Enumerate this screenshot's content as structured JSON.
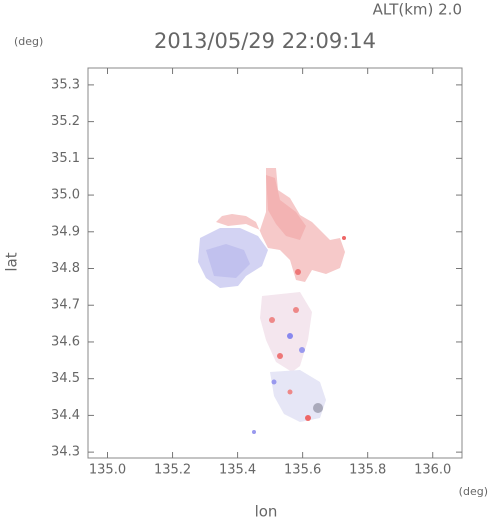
{
  "chart_data": {
    "type": "map",
    "title": "2013/05/29 22:09:14",
    "subtitle": "ALT(km) 2.0",
    "y_unit": "(deg)",
    "x_unit": "(deg)",
    "xlabel": "lon",
    "ylabel": "lat",
    "xlim": [
      134.94,
      136.09
    ],
    "ylim": [
      34.284,
      35.346
    ],
    "xticks": [
      {
        "value": 135,
        "label": "135.0"
      },
      135.2,
      135.4,
      135.6,
      135.8,
      {
        "value": 136,
        "label": "136.0"
      }
    ],
    "yticks": [
      34.3,
      34.4,
      34.5,
      34.6,
      34.7,
      34.8,
      34.9,
      {
        "value": 35,
        "label": "35.0"
      },
      35.1,
      35.2,
      35.3
    ]
  }
}
